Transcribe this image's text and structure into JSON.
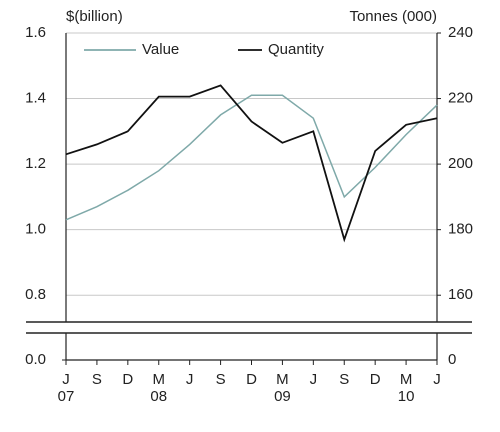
{
  "chart_data": {
    "type": "line",
    "y_label": "$(billion)",
    "y2_label": "Tonnes (000)",
    "categories": [
      "J",
      "S",
      "D",
      "M",
      "J",
      "S",
      "D",
      "M",
      "J",
      "S",
      "D",
      "M",
      "J"
    ],
    "year_labels": [
      "07",
      null,
      null,
      "08",
      null,
      null,
      null,
      "09",
      null,
      null,
      null,
      "10",
      null
    ],
    "series": [
      {
        "name": "Value",
        "color": "#7fa9a9",
        "values": [
          1.03,
          1.07,
          1.12,
          1.18,
          1.26,
          1.35,
          1.41,
          1.41,
          1.34,
          1.1,
          1.19,
          1.29,
          1.38
        ]
      },
      {
        "name": "Quantity",
        "color": "#111111",
        "axis": "y2",
        "values": [
          203,
          206,
          210,
          220.6,
          220.6,
          224,
          213,
          206.5,
          210,
          177,
          204,
          212,
          214
        ]
      }
    ],
    "ylim": [
      0.7,
      1.6
    ],
    "yticks": [
      {
        "value": 1.6,
        "label": "1.6"
      },
      1.4,
      1.2,
      {
        "value": 1.0,
        "label": "1.0"
      },
      0.8
    ],
    "y_break_tick": {
      "value": 0,
      "label": "0.0"
    },
    "y2lim": [
      150,
      240
    ],
    "y2ticks": [
      240,
      220,
      200,
      180,
      160
    ],
    "y2_break_tick": 0,
    "grid": true,
    "legend": "top"
  }
}
